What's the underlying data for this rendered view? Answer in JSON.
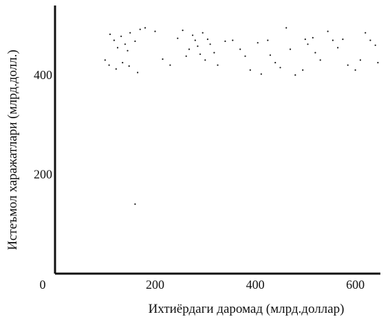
{
  "chart_data": {
    "type": "scatter",
    "title": "",
    "xlabel": "Ихтиёрдаги даромад (млрд.доллар)",
    "ylabel": "Истеъмол харажатлари (млрд.долл.)",
    "xlim": [
      0,
      650
    ],
    "ylim": [
      0,
      540
    ],
    "x_ticks": [
      0,
      200,
      400,
      600
    ],
    "y_ticks": [
      200,
      400
    ],
    "grid": false,
    "legend": "none",
    "colors": {
      "axis": "#111111",
      "points": "#1a1a1a",
      "background": "#ffffff"
    },
    "points": [
      [
        110,
        482
      ],
      [
        118,
        470
      ],
      [
        125,
        455
      ],
      [
        132,
        478
      ],
      [
        140,
        462
      ],
      [
        145,
        449
      ],
      [
        150,
        485
      ],
      [
        160,
        468
      ],
      [
        170,
        492
      ],
      [
        100,
        430
      ],
      [
        108,
        420
      ],
      [
        122,
        412
      ],
      [
        135,
        425
      ],
      [
        148,
        418
      ],
      [
        165,
        405
      ],
      [
        180,
        495
      ],
      [
        200,
        488
      ],
      [
        215,
        432
      ],
      [
        230,
        420
      ],
      [
        245,
        474
      ],
      [
        255,
        490
      ],
      [
        262,
        438
      ],
      [
        268,
        452
      ],
      [
        275,
        480
      ],
      [
        280,
        470
      ],
      [
        285,
        458
      ],
      [
        290,
        442
      ],
      [
        295,
        485
      ],
      [
        300,
        430
      ],
      [
        305,
        472
      ],
      [
        310,
        462
      ],
      [
        318,
        445
      ],
      [
        325,
        420
      ],
      [
        340,
        468
      ],
      [
        355,
        470
      ],
      [
        370,
        452
      ],
      [
        380,
        438
      ],
      [
        390,
        410
      ],
      [
        405,
        465
      ],
      [
        412,
        402
      ],
      [
        425,
        470
      ],
      [
        430,
        440
      ],
      [
        440,
        425
      ],
      [
        450,
        415
      ],
      [
        462,
        495
      ],
      [
        470,
        452
      ],
      [
        480,
        400
      ],
      [
        495,
        410
      ],
      [
        500,
        472
      ],
      [
        505,
        462
      ],
      [
        515,
        475
      ],
      [
        520,
        445
      ],
      [
        530,
        430
      ],
      [
        545,
        488
      ],
      [
        555,
        470
      ],
      [
        565,
        455
      ],
      [
        575,
        472
      ],
      [
        585,
        420
      ],
      [
        600,
        410
      ],
      [
        610,
        430
      ],
      [
        620,
        485
      ],
      [
        630,
        470
      ],
      [
        640,
        460
      ],
      [
        645,
        425
      ],
      [
        160,
        140
      ]
    ]
  }
}
